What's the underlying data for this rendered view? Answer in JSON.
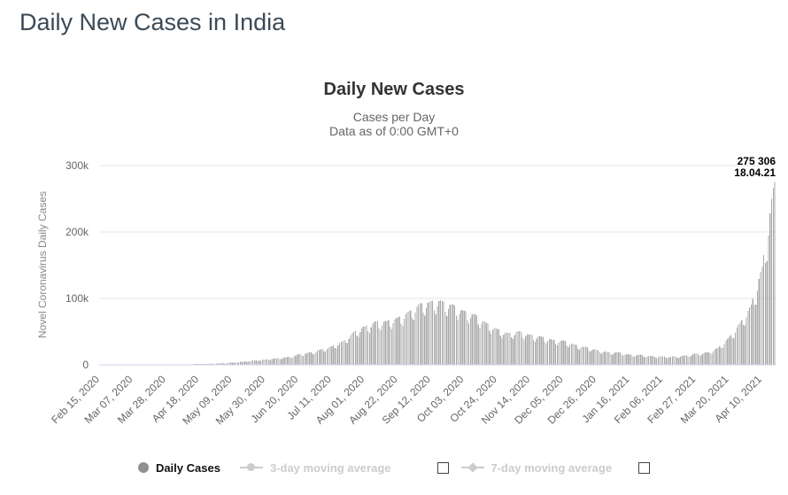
{
  "page": {
    "title": "Daily New Cases in India"
  },
  "chart": {
    "title": "Daily New Cases",
    "subtitle_line1": "Cases per Day",
    "subtitle_line2": "Data as of 0:00 GMT+0"
  },
  "legend": {
    "daily_cases_label": "Daily Cases",
    "ma3_label": "3-day moving average",
    "ma7_label": "7-day moving average",
    "ma3_checkbox_checked": false,
    "ma7_checkbox_checked": false
  },
  "chart_data": {
    "type": "bar",
    "title": "Daily New Cases",
    "subtitle": [
      "Cases per Day",
      "Data as of 0:00 GMT+0"
    ],
    "ylabel": "Novel Coronavirus Daily Cases",
    "xlabel": "",
    "ylim": [
      0,
      300000
    ],
    "grid": "horizontal",
    "legend_position": "bottom",
    "bar_color": "#a8a8a8",
    "gridline_color": "#e6e6e6",
    "xaxis_line_color": "#ccd6eb",
    "x_start_date": "2020-02-15",
    "x_end_date": "2021-04-18",
    "yticks": [
      {
        "label": "0",
        "value": 0
      },
      {
        "label": "100k",
        "value": 100000
      },
      {
        "label": "200k",
        "value": 200000
      },
      {
        "label": "300k",
        "value": 300000
      }
    ],
    "xticks": [
      "Feb 15, 2020",
      "Mar 07, 2020",
      "Mar 28, 2020",
      "Apr 18, 2020",
      "May 09, 2020",
      "May 30, 2020",
      "Jun 20, 2020",
      "Jul 11, 2020",
      "Aug 01, 2020",
      "Aug 22, 2020",
      "Sep 12, 2020",
      "Oct 03, 2020",
      "Oct 24, 2020",
      "Nov 14, 2020",
      "Dec 05, 2020",
      "Dec 26, 2020",
      "Jan 16, 2021",
      "Feb 06, 2021",
      "Feb 27, 2021",
      "Mar 20, 2021",
      "Apr 10, 2021"
    ],
    "xtick_interval_days": 21,
    "annotation": {
      "value_label": "275 306",
      "date_label": "18.04.21",
      "value": 275306,
      "date": "2021-04-18"
    },
    "series": [
      {
        "name": "Daily Cases",
        "visible": true,
        "anchors": [
          [
            "2020-02-15",
            0
          ],
          [
            "2020-03-01",
            0
          ],
          [
            "2020-03-14",
            15
          ],
          [
            "2020-03-21",
            60
          ],
          [
            "2020-03-28",
            140
          ],
          [
            "2020-04-04",
            480
          ],
          [
            "2020-04-11",
            850
          ],
          [
            "2020-04-18",
            1300
          ],
          [
            "2020-04-25",
            1650
          ],
          [
            "2020-05-02",
            2400
          ],
          [
            "2020-05-09",
            3300
          ],
          [
            "2020-05-16",
            4800
          ],
          [
            "2020-05-23",
            6600
          ],
          [
            "2020-05-30",
            8000
          ],
          [
            "2020-06-06",
            9900
          ],
          [
            "2020-06-13",
            11500
          ],
          [
            "2020-06-20",
            15400
          ],
          [
            "2020-06-27",
            18500
          ],
          [
            "2020-07-04",
            22750
          ],
          [
            "2020-07-11",
            27750
          ],
          [
            "2020-07-18",
            34900
          ],
          [
            "2020-07-25",
            48900
          ],
          [
            "2020-08-01",
            57100
          ],
          [
            "2020-08-08",
            64400
          ],
          [
            "2020-08-15",
            65000
          ],
          [
            "2020-08-22",
            69900
          ],
          [
            "2020-08-29",
            78900
          ],
          [
            "2020-09-05",
            90600
          ],
          [
            "2020-09-12",
            94300
          ],
          [
            "2020-09-17",
            96000
          ],
          [
            "2020-09-26",
            88600
          ],
          [
            "2020-10-03",
            79500
          ],
          [
            "2020-10-10",
            74400
          ],
          [
            "2020-10-17",
            62200
          ],
          [
            "2020-10-24",
            53000
          ],
          [
            "2020-10-31",
            46900
          ],
          [
            "2020-11-07",
            50000
          ],
          [
            "2020-11-14",
            44500
          ],
          [
            "2020-11-21",
            42000
          ],
          [
            "2020-11-28",
            37000
          ],
          [
            "2020-12-05",
            36000
          ],
          [
            "2020-12-12",
            30000
          ],
          [
            "2020-12-19",
            26600
          ],
          [
            "2020-12-26",
            22300
          ],
          [
            "2021-01-02",
            19000
          ],
          [
            "2021-01-09",
            18600
          ],
          [
            "2021-01-16",
            15100
          ],
          [
            "2021-01-23",
            14800
          ],
          [
            "2021-01-30",
            13000
          ],
          [
            "2021-02-06",
            12400
          ],
          [
            "2021-02-13",
            12200
          ],
          [
            "2021-02-20",
            13800
          ],
          [
            "2021-02-27",
            16500
          ],
          [
            "2021-03-06",
            18300
          ],
          [
            "2021-03-13",
            24900
          ],
          [
            "2021-03-20",
            40950
          ],
          [
            "2021-03-27",
            62300
          ],
          [
            "2021-04-03",
            89100
          ],
          [
            "2021-04-10",
            145400
          ],
          [
            "2021-04-17",
            261500
          ],
          [
            "2021-04-18",
            275306
          ]
        ]
      },
      {
        "name": "3-day moving average",
        "visible": false
      },
      {
        "name": "7-day moving average",
        "visible": false
      }
    ],
    "weekly_reporting_pattern": [
      1.02,
      1.02,
      0.86,
      0.8,
      0.92,
      1.0,
      1.02
    ]
  }
}
